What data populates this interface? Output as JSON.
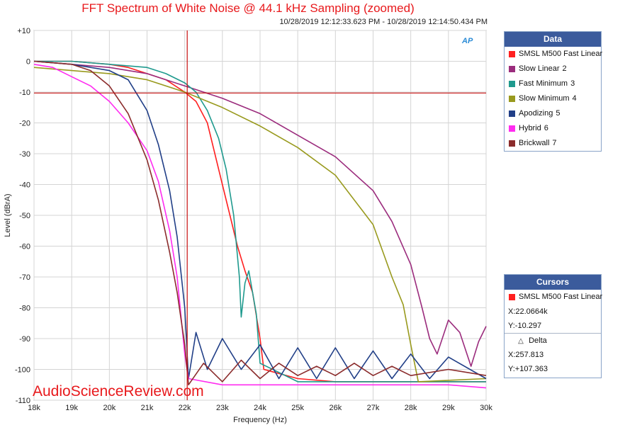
{
  "chart_data": {
    "type": "line",
    "title": "FFT Spectrum of White Noise @ 44.1 kHz Sampling (zoomed)",
    "subtitle": "10/28/2019 12:12:33.623 PM - 10/28/2019 12:14:50.434 PM",
    "xlabel": "Frequency (Hz)",
    "ylabel": "Level (dBrA)",
    "xlim": [
      18000,
      30000
    ],
    "ylim": [
      -110,
      10
    ],
    "x_ticks": [
      18000,
      19000,
      20000,
      21000,
      22000,
      23000,
      24000,
      25000,
      26000,
      27000,
      28000,
      29000,
      30000
    ],
    "x_tick_labels": [
      "18k",
      "19k",
      "20k",
      "21k",
      "22k",
      "23k",
      "24k",
      "25k",
      "26k",
      "27k",
      "28k",
      "29k",
      "30k"
    ],
    "y_ticks": [
      10,
      0,
      -10,
      -20,
      -30,
      -40,
      -50,
      -60,
      -70,
      -80,
      -90,
      -100,
      -110
    ],
    "y_tick_labels": [
      "+10",
      "0",
      "-10",
      "-20",
      "-30",
      "-40",
      "-50",
      "-60",
      "-70",
      "-80",
      "-90",
      "-100",
      "-110"
    ],
    "grid": true,
    "cursor": {
      "x": 22066.4,
      "y": -10.297
    },
    "series": [
      {
        "name": "SMSL M500 Fast Linear",
        "num": "",
        "color": "#ff2020",
        "points": [
          [
            18000,
            0
          ],
          [
            19000,
            0
          ],
          [
            20000,
            -1
          ],
          [
            20500,
            -2
          ],
          [
            21000,
            -4
          ],
          [
            21500,
            -6
          ],
          [
            22000,
            -10
          ],
          [
            22300,
            -13
          ],
          [
            22600,
            -20
          ],
          [
            22800,
            -30
          ],
          [
            23000,
            -40
          ],
          [
            23200,
            -50
          ],
          [
            23400,
            -60
          ],
          [
            23600,
            -68
          ],
          [
            23800,
            -75
          ],
          [
            24000,
            -90
          ],
          [
            24100,
            -100
          ],
          [
            25000,
            -103
          ],
          [
            26000,
            -104
          ],
          [
            27000,
            -104
          ],
          [
            28000,
            -104
          ],
          [
            29000,
            -104
          ],
          [
            30000,
            -104
          ]
        ]
      },
      {
        "name": "Slow Linear",
        "num": "2",
        "color": "#9b2c7d",
        "points": [
          [
            18000,
            0
          ],
          [
            19000,
            -1
          ],
          [
            20000,
            -2
          ],
          [
            21000,
            -4
          ],
          [
            22000,
            -8
          ],
          [
            23000,
            -12
          ],
          [
            24000,
            -17
          ],
          [
            25000,
            -24
          ],
          [
            26000,
            -31
          ],
          [
            27000,
            -42
          ],
          [
            27500,
            -52
          ],
          [
            28000,
            -66
          ],
          [
            28300,
            -80
          ],
          [
            28500,
            -90
          ],
          [
            28700,
            -95
          ],
          [
            29000,
            -84
          ],
          [
            29300,
            -88
          ],
          [
            29600,
            -99
          ],
          [
            29800,
            -91
          ],
          [
            30000,
            -86
          ]
        ]
      },
      {
        "name": "Fast Minimum",
        "num": "3",
        "color": "#1f9a8e",
        "points": [
          [
            18000,
            0
          ],
          [
            19000,
            0
          ],
          [
            20000,
            -1
          ],
          [
            21000,
            -2
          ],
          [
            21500,
            -4
          ],
          [
            22000,
            -7
          ],
          [
            22300,
            -10
          ],
          [
            22600,
            -16
          ],
          [
            22900,
            -25
          ],
          [
            23100,
            -35
          ],
          [
            23300,
            -50
          ],
          [
            23450,
            -70
          ],
          [
            23500,
            -83
          ],
          [
            23600,
            -72
          ],
          [
            23700,
            -68
          ],
          [
            23900,
            -82
          ],
          [
            24000,
            -98
          ],
          [
            25000,
            -104
          ],
          [
            26000,
            -104
          ],
          [
            27000,
            -104
          ],
          [
            28000,
            -104
          ],
          [
            30000,
            -104
          ]
        ]
      },
      {
        "name": "Slow Minimum",
        "num": "4",
        "color": "#999a1e",
        "points": [
          [
            18000,
            -2
          ],
          [
            19000,
            -3
          ],
          [
            20000,
            -4
          ],
          [
            21000,
            -6
          ],
          [
            22000,
            -10
          ],
          [
            23000,
            -15
          ],
          [
            24000,
            -21
          ],
          [
            25000,
            -28
          ],
          [
            26000,
            -37
          ],
          [
            27000,
            -53
          ],
          [
            27500,
            -70
          ],
          [
            27800,
            -79
          ],
          [
            28000,
            -92
          ],
          [
            28200,
            -104
          ],
          [
            30000,
            -103
          ]
        ]
      },
      {
        "name": "Apodizing",
        "num": "5",
        "color": "#213f87",
        "points": [
          [
            18000,
            0
          ],
          [
            19000,
            -1
          ],
          [
            20000,
            -3
          ],
          [
            20500,
            -6
          ],
          [
            21000,
            -16
          ],
          [
            21300,
            -27
          ],
          [
            21600,
            -42
          ],
          [
            21800,
            -57
          ],
          [
            22000,
            -80
          ],
          [
            22100,
            -103
          ],
          [
            22300,
            -88
          ],
          [
            22600,
            -100
          ],
          [
            23000,
            -90
          ],
          [
            23500,
            -100
          ],
          [
            24000,
            -92
          ],
          [
            24500,
            -103
          ],
          [
            25000,
            -93
          ],
          [
            25500,
            -103
          ],
          [
            26000,
            -93
          ],
          [
            26500,
            -103
          ],
          [
            27000,
            -94
          ],
          [
            27500,
            -103
          ],
          [
            28000,
            -95
          ],
          [
            28500,
            -103
          ],
          [
            29000,
            -96
          ],
          [
            30000,
            -103
          ]
        ]
      },
      {
        "name": "Hybrid",
        "num": "6",
        "color": "#ff2cf0",
        "points": [
          [
            18000,
            -1
          ],
          [
            18500,
            -2
          ],
          [
            19000,
            -5
          ],
          [
            19500,
            -8
          ],
          [
            20000,
            -13
          ],
          [
            20500,
            -20
          ],
          [
            21000,
            -29
          ],
          [
            21300,
            -39
          ],
          [
            21600,
            -55
          ],
          [
            21800,
            -70
          ],
          [
            22000,
            -95
          ],
          [
            22100,
            -103
          ],
          [
            23000,
            -105
          ],
          [
            24000,
            -105
          ],
          [
            25000,
            -105
          ],
          [
            26000,
            -105
          ],
          [
            27000,
            -105
          ],
          [
            28000,
            -105
          ],
          [
            29000,
            -105
          ],
          [
            30000,
            -106
          ]
        ]
      },
      {
        "name": "Brickwall",
        "num": "7",
        "color": "#8b2c2c",
        "points": [
          [
            18000,
            0
          ],
          [
            19000,
            -1
          ],
          [
            19500,
            -3
          ],
          [
            20000,
            -8
          ],
          [
            20500,
            -17
          ],
          [
            21000,
            -32
          ],
          [
            21300,
            -45
          ],
          [
            21600,
            -62
          ],
          [
            21800,
            -75
          ],
          [
            22000,
            -92
          ],
          [
            22100,
            -105
          ],
          [
            22500,
            -98
          ],
          [
            23000,
            -104
          ],
          [
            23500,
            -97
          ],
          [
            24000,
            -103
          ],
          [
            24500,
            -98
          ],
          [
            25000,
            -102
          ],
          [
            25500,
            -99
          ],
          [
            26000,
            -102
          ],
          [
            26500,
            -98
          ],
          [
            27000,
            -102
          ],
          [
            27500,
            -99
          ],
          [
            28000,
            -102
          ],
          [
            29000,
            -100
          ],
          [
            30000,
            -102
          ]
        ]
      }
    ]
  },
  "data_panel": {
    "title": "Data"
  },
  "cursors_panel": {
    "title": "Cursors",
    "series": "SMSL M500 Fast Linear",
    "series_color": "#ff2020",
    "x_text": "X:22.0664k",
    "y_text": "Y:-10.297",
    "delta_label": "Delta",
    "dx_text": "X:257.813",
    "dy_text": "Y:+107.363"
  },
  "watermark": "AudioScienceReview.com",
  "logo": "AP"
}
